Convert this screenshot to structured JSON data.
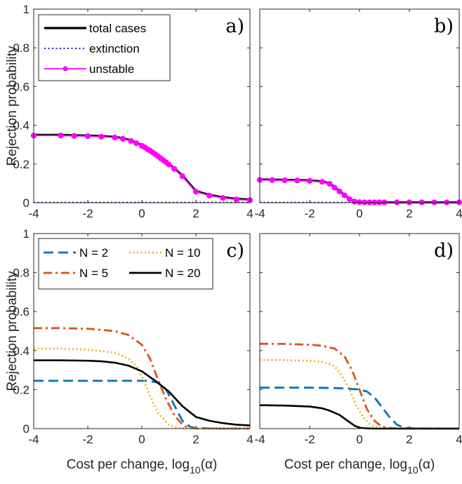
{
  "chart_data": [
    {
      "type": "line",
      "panel": "a)",
      "ylabel": "Rejection probability",
      "xlabel": "",
      "xlim": [
        -4,
        4
      ],
      "ylim": [
        0,
        1
      ],
      "xticks": [
        -4,
        -2,
        0,
        2,
        4
      ],
      "yticks": [
        0,
        0.2,
        0.4,
        0.6,
        0.8,
        1
      ],
      "legend": {
        "placement": "top-left"
      },
      "series": [
        {
          "name": "total cases",
          "color": "#000000",
          "style": "solid",
          "marker": "none",
          "x": [
            -4,
            -3,
            -2.5,
            -2,
            -1.5,
            -1,
            -0.7,
            -0.4,
            -0.2,
            0,
            0.1,
            0.2,
            0.3,
            0.4,
            0.5,
            0.6,
            0.7,
            0.8,
            0.9,
            1,
            1.2,
            1.5,
            2,
            2.5,
            3,
            3.5,
            4
          ],
          "y": [
            0.35,
            0.35,
            0.348,
            0.347,
            0.344,
            0.34,
            0.333,
            0.322,
            0.31,
            0.297,
            0.29,
            0.28,
            0.272,
            0.263,
            0.253,
            0.243,
            0.232,
            0.222,
            0.212,
            0.2,
            0.178,
            0.14,
            0.06,
            0.04,
            0.028,
            0.02,
            0.016
          ]
        },
        {
          "name": "extinction",
          "color": "#0000cc",
          "style": "dotted",
          "marker": "none",
          "x": [
            -4,
            4
          ],
          "y": [
            0.002,
            0.002
          ]
        },
        {
          "name": "unstable",
          "color": "#ff00ff",
          "style": "solid",
          "marker": "circle",
          "x": [
            -4,
            -3,
            -2.5,
            -2,
            -1.5,
            -1,
            -0.7,
            -0.4,
            -0.2,
            0,
            0.1,
            0.2,
            0.3,
            0.4,
            0.5,
            0.6,
            0.7,
            0.8,
            0.9,
            1,
            1.2,
            1.5,
            2,
            2.5,
            3,
            3.5,
            4
          ],
          "y": [
            0.347,
            0.347,
            0.345,
            0.344,
            0.341,
            0.337,
            0.33,
            0.319,
            0.307,
            0.294,
            0.287,
            0.277,
            0.269,
            0.26,
            0.25,
            0.24,
            0.229,
            0.219,
            0.209,
            0.197,
            0.175,
            0.137,
            0.057,
            0.037,
            0.025,
            0.017,
            0.013
          ]
        }
      ]
    },
    {
      "type": "line",
      "panel": "b)",
      "ylabel": "",
      "xlabel": "",
      "xlim": [
        -4,
        4
      ],
      "ylim": [
        0,
        1
      ],
      "xticks": [
        -4,
        -2,
        0,
        2,
        4
      ],
      "yticks": [
        0,
        0.2,
        0.4,
        0.6,
        0.8,
        1
      ],
      "series": [
        {
          "name": "total cases",
          "color": "#000000",
          "style": "solid",
          "marker": "none",
          "x": [
            -4,
            -3.5,
            -3,
            -2.5,
            -2,
            -1.5,
            -1.2,
            -1,
            -0.8,
            -0.6,
            -0.4,
            -0.2,
            0,
            0.2,
            0.4,
            0.6,
            0.8,
            1,
            1.5,
            2,
            2.5,
            3,
            3.5,
            4
          ],
          "y": [
            0.12,
            0.119,
            0.118,
            0.117,
            0.115,
            0.11,
            0.1,
            0.08,
            0.06,
            0.04,
            0.02,
            0.008,
            0.004,
            0.003,
            0.002,
            0.002,
            0.002,
            0.002,
            0.002,
            0.002,
            0.002,
            0.002,
            0.002,
            0.002
          ]
        },
        {
          "name": "extinction",
          "color": "#0000cc",
          "style": "dotted",
          "marker": "none",
          "x": [
            -4,
            4
          ],
          "y": [
            0.002,
            0.002
          ]
        },
        {
          "name": "unstable",
          "color": "#ff00ff",
          "style": "solid",
          "marker": "circle",
          "x": [
            -4,
            -3.5,
            -3,
            -2.5,
            -2,
            -1.5,
            -1.2,
            -1,
            -0.8,
            -0.6,
            -0.4,
            -0.2,
            0,
            0.2,
            0.4,
            0.6,
            0.8,
            1,
            1.5,
            2,
            2.5,
            3,
            3.5,
            4
          ],
          "y": [
            0.118,
            0.117,
            0.116,
            0.115,
            0.113,
            0.108,
            0.098,
            0.078,
            0.058,
            0.038,
            0.018,
            0.006,
            0.003,
            0.002,
            0.002,
            0.002,
            0.002,
            0.002,
            0.002,
            0.002,
            0.002,
            0.002,
            0.002,
            0.002
          ]
        }
      ]
    },
    {
      "type": "line",
      "panel": "c)",
      "ylabel": "Rejection probability",
      "xlabel": "Cost per change, log",
      "xlabel_sub": "10",
      "xlabel_tail": "(α)",
      "xlim": [
        -4,
        4
      ],
      "ylim": [
        0,
        1
      ],
      "xticks": [
        -4,
        -2,
        0,
        2,
        4
      ],
      "yticks": [
        0,
        0.2,
        0.4,
        0.6,
        0.8,
        1
      ],
      "legend": {
        "placement": "top-left",
        "columns": 2
      },
      "series": [
        {
          "name": "N = 2",
          "color": "#0072bd",
          "style": "dashed",
          "x": [
            -4,
            -3,
            -2,
            -1,
            0,
            0.3,
            0.6,
            0.9,
            1.2,
            1.5,
            1.8,
            2,
            2.5,
            3,
            4
          ],
          "y": [
            0.245,
            0.245,
            0.245,
            0.245,
            0.245,
            0.244,
            0.235,
            0.2,
            0.12,
            0.04,
            0.008,
            0.003,
            0.001,
            0,
            0
          ]
        },
        {
          "name": "N = 5",
          "color": "#d95319",
          "style": "dashdot",
          "x": [
            -4,
            -3,
            -2,
            -1,
            -0.5,
            0,
            0.3,
            0.6,
            0.9,
            1.2,
            1.5,
            1.7,
            2,
            3,
            4
          ],
          "y": [
            0.515,
            0.515,
            0.512,
            0.5,
            0.48,
            0.43,
            0.36,
            0.25,
            0.15,
            0.07,
            0.02,
            0.005,
            0.001,
            0,
            0
          ]
        },
        {
          "name": "N = 10",
          "color": "#edb120",
          "style": "dotted",
          "x": [
            -4,
            -3,
            -2,
            -1,
            -0.5,
            -0.2,
            0,
            0.3,
            0.6,
            1,
            1.3,
            1.5,
            2,
            3,
            4
          ],
          "y": [
            0.41,
            0.41,
            0.405,
            0.39,
            0.36,
            0.32,
            0.27,
            0.17,
            0.08,
            0.02,
            0.005,
            0.002,
            0,
            0,
            0
          ]
        },
        {
          "name": "N = 20",
          "color": "#000000",
          "style": "solid",
          "x": [
            -4,
            -3,
            -2,
            -1.5,
            -1,
            -0.5,
            0,
            0.5,
            1,
            1.5,
            2,
            2.5,
            3,
            3.5,
            4
          ],
          "y": [
            0.35,
            0.35,
            0.348,
            0.345,
            0.338,
            0.323,
            0.294,
            0.245,
            0.19,
            0.115,
            0.06,
            0.04,
            0.028,
            0.02,
            0.016
          ]
        }
      ]
    },
    {
      "type": "line",
      "panel": "d)",
      "ylabel": "",
      "xlabel": "Cost per change, log",
      "xlabel_sub": "10",
      "xlabel_tail": "(α)",
      "xlim": [
        -4,
        4
      ],
      "ylim": [
        0,
        1
      ],
      "xticks": [
        -4,
        -2,
        0,
        2,
        4
      ],
      "yticks": [
        0,
        0.2,
        0.4,
        0.6,
        0.8,
        1
      ],
      "series": [
        {
          "name": "N = 2",
          "color": "#0072bd",
          "style": "dashed",
          "x": [
            -4,
            -3,
            -2,
            -1,
            -0.5,
            0,
            0.3,
            0.6,
            0.9,
            1.2,
            1.5,
            1.8,
            2.2,
            3,
            4
          ],
          "y": [
            0.21,
            0.21,
            0.21,
            0.208,
            0.205,
            0.2,
            0.19,
            0.16,
            0.11,
            0.06,
            0.02,
            0.004,
            0.001,
            0,
            0
          ]
        },
        {
          "name": "N = 5",
          "color": "#d95319",
          "style": "dashdot",
          "x": [
            -4,
            -3,
            -2,
            -1.5,
            -1,
            -0.6,
            -0.3,
            0,
            0.3,
            0.6,
            0.9,
            1.2,
            1.5,
            3,
            4
          ],
          "y": [
            0.435,
            0.434,
            0.43,
            0.425,
            0.41,
            0.37,
            0.3,
            0.2,
            0.1,
            0.04,
            0.01,
            0.003,
            0.001,
            0,
            0
          ]
        },
        {
          "name": "N = 10",
          "color": "#edb120",
          "style": "dotted",
          "x": [
            -4,
            -3,
            -2,
            -1.5,
            -1,
            -0.7,
            -0.4,
            -0.1,
            0.2,
            0.5,
            0.8,
            1,
            1.3,
            3,
            4
          ],
          "y": [
            0.352,
            0.351,
            0.348,
            0.342,
            0.32,
            0.27,
            0.2,
            0.11,
            0.05,
            0.015,
            0.004,
            0.001,
            0,
            0,
            0
          ]
        },
        {
          "name": "N = 20",
          "color": "#000000",
          "style": "solid",
          "x": [
            -4,
            -3,
            -2,
            -1.5,
            -1.2,
            -0.8,
            -0.5,
            -0.2,
            0,
            0.3,
            0.6,
            1,
            2,
            3,
            4
          ],
          "y": [
            0.12,
            0.118,
            0.113,
            0.104,
            0.092,
            0.07,
            0.042,
            0.015,
            0.004,
            0.001,
            0,
            0,
            0,
            0,
            0
          ]
        }
      ]
    }
  ]
}
